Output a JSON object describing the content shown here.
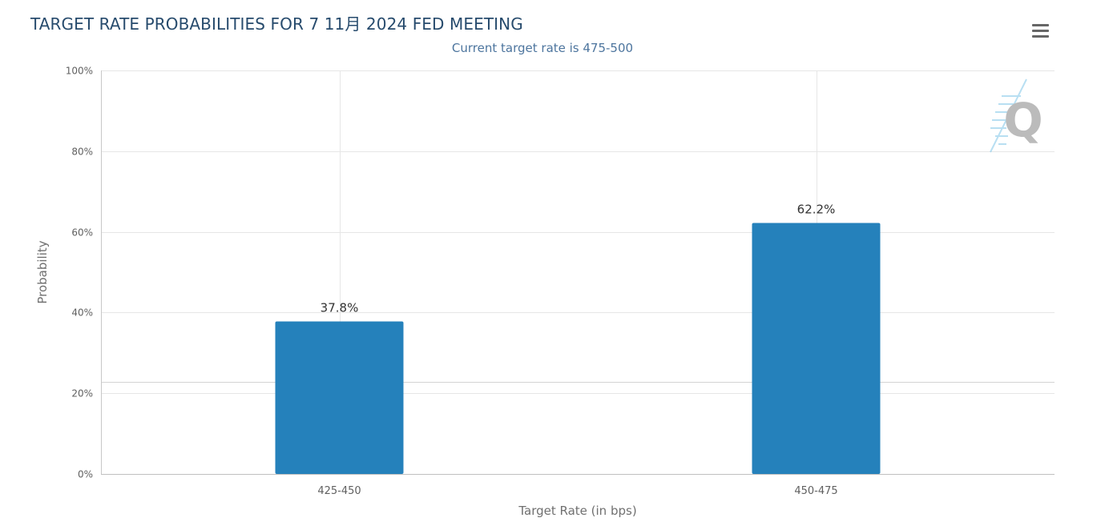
{
  "header": {
    "title": "TARGET RATE PROBABILITIES FOR 7 11月 2024 FED MEETING",
    "subtitle": "Current target rate is 475-500"
  },
  "toolbar": {
    "menu_icon": "hamburger-menu-icon"
  },
  "watermark": {
    "letter": "Q"
  },
  "colors": {
    "bar": "#2581bb",
    "title": "#274b6d",
    "subtitle": "#4d759e",
    "grid": "#e6e6e6"
  },
  "chart_data": {
    "type": "bar",
    "categories": [
      "425-450",
      "450-475"
    ],
    "values": [
      37.8,
      62.2
    ],
    "data_labels": [
      "37.8%",
      "62.2%"
    ],
    "title": "TARGET RATE PROBABILITIES FOR 7 11月 2024 FED MEETING",
    "subtitle": "Current target rate is 475-500",
    "xlabel": "Target Rate (in bps)",
    "ylabel": "Probability",
    "ylim": [
      0,
      100
    ],
    "yticks": [
      0,
      20,
      40,
      60,
      80,
      100
    ],
    "ytick_labels": [
      "0%",
      "20%",
      "40%",
      "60%",
      "80%",
      "100%"
    ],
    "grid": true,
    "legend": "none"
  }
}
